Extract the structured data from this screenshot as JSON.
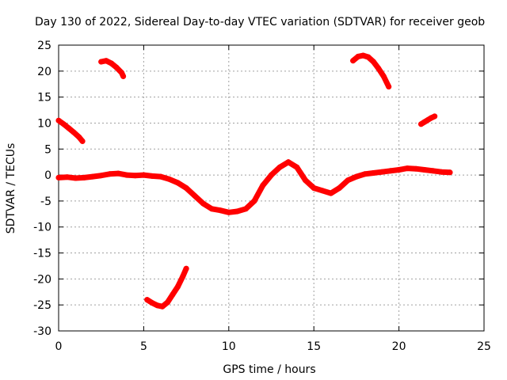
{
  "chart_data": {
    "type": "scatter",
    "title": "Day 130 of 2022, Sidereal Day-to-day VTEC variation (SDTVAR) for receiver geob",
    "xlabel": "GPS time / hours",
    "ylabel": "SDTVAR / TECUs",
    "xlim": [
      0,
      25
    ],
    "ylim": [
      -30,
      25
    ],
    "xticks": [
      0,
      5,
      10,
      15,
      20,
      25
    ],
    "yticks": [
      -30,
      -25,
      -20,
      -15,
      -10,
      -5,
      0,
      5,
      10,
      15,
      20,
      25
    ],
    "grid": true,
    "series_color": "#ff0000",
    "series": [
      {
        "name": "main-trace",
        "x": [
          0.0,
          0.5,
          1.0,
          1.5,
          2.0,
          2.5,
          3.0,
          3.5,
          4.0,
          4.5,
          5.0,
          5.5,
          6.0,
          6.5,
          7.0,
          7.5,
          8.0,
          8.5,
          9.0,
          9.5,
          10.0,
          10.5,
          11.0,
          11.5,
          12.0,
          12.5,
          13.0,
          13.5,
          14.0,
          14.5,
          15.0,
          15.5,
          16.0,
          16.5,
          17.0,
          17.5,
          18.0,
          18.5,
          19.0,
          19.5,
          20.0,
          20.5,
          21.0,
          21.5,
          22.0,
          22.5,
          23.0
        ],
        "y": [
          -0.5,
          -0.4,
          -0.6,
          -0.5,
          -0.3,
          -0.1,
          0.2,
          0.3,
          0.0,
          -0.1,
          0.0,
          -0.2,
          -0.3,
          -0.8,
          -1.5,
          -2.5,
          -4.0,
          -5.5,
          -6.5,
          -6.8,
          -7.2,
          -7.0,
          -6.5,
          -5.0,
          -2.0,
          0.0,
          1.5,
          2.5,
          1.5,
          -1.0,
          -2.5,
          -3.0,
          -3.5,
          -2.5,
          -1.0,
          -0.3,
          0.2,
          0.4,
          0.6,
          0.8,
          1.0,
          1.3,
          1.2,
          1.0,
          0.8,
          0.6,
          0.5
        ]
      },
      {
        "name": "arc-upper-left",
        "x": [
          0.0,
          0.3,
          0.6,
          0.9,
          1.2,
          1.4
        ],
        "y": [
          10.5,
          9.8,
          9.0,
          8.2,
          7.3,
          6.5
        ]
      },
      {
        "name": "arc-top-left",
        "x": [
          2.5,
          2.8,
          3.1,
          3.4,
          3.7,
          3.8
        ],
        "y": [
          21.8,
          22.0,
          21.5,
          20.7,
          19.7,
          19.0
        ]
      },
      {
        "name": "arc-bottom",
        "x": [
          5.2,
          5.5,
          5.8,
          6.1,
          6.4,
          6.7,
          7.0,
          7.3,
          7.5
        ],
        "y": [
          -24.0,
          -24.6,
          -25.1,
          -25.3,
          -24.5,
          -23.0,
          -21.5,
          -19.5,
          -18.0
        ]
      },
      {
        "name": "arc-top-right",
        "x": [
          17.3,
          17.6,
          17.9,
          18.2,
          18.5,
          18.8,
          19.1,
          19.4
        ],
        "y": [
          22.0,
          22.8,
          23.0,
          22.7,
          21.8,
          20.5,
          19.0,
          17.0
        ]
      },
      {
        "name": "arc-right",
        "x": [
          21.3,
          21.5,
          21.7,
          21.9,
          22.1
        ],
        "y": [
          9.8,
          10.2,
          10.6,
          11.0,
          11.3
        ]
      }
    ]
  }
}
